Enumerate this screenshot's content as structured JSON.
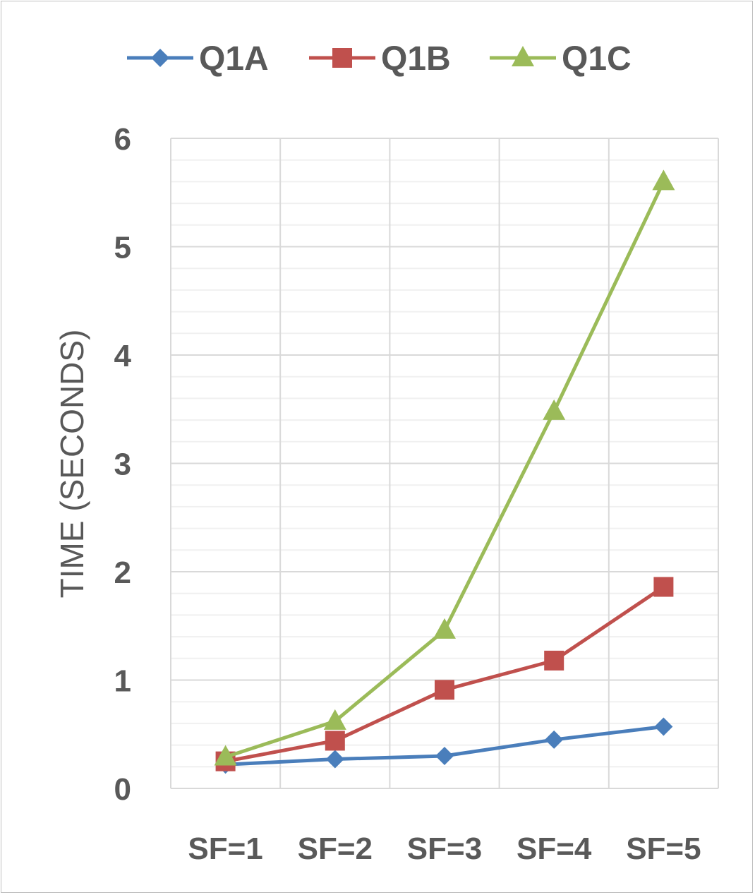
{
  "chart_data": {
    "type": "line",
    "categories": [
      "SF=1",
      "SF=2",
      "SF=3",
      "SF=4",
      "SF=5"
    ],
    "ylabel": "TIME (SECONDS)",
    "xlabel": "",
    "ylim": [
      0,
      6
    ],
    "yticks": [
      "0",
      "1",
      "2",
      "3",
      "4",
      "5",
      "6"
    ],
    "grid": true,
    "minor_grid": true,
    "legend": "top",
    "series": [
      {
        "name": "Q1A",
        "color": "#4a7ebb",
        "marker": "diamond",
        "values": [
          0.22,
          0.27,
          0.3,
          0.45,
          0.57
        ]
      },
      {
        "name": "Q1B",
        "color": "#c0504d",
        "marker": "square",
        "values": [
          0.25,
          0.44,
          0.91,
          1.18,
          1.86
        ]
      },
      {
        "name": "Q1C",
        "color": "#9bbb59",
        "marker": "triangle",
        "values": [
          0.29,
          0.62,
          1.46,
          3.48,
          5.6
        ]
      }
    ]
  }
}
